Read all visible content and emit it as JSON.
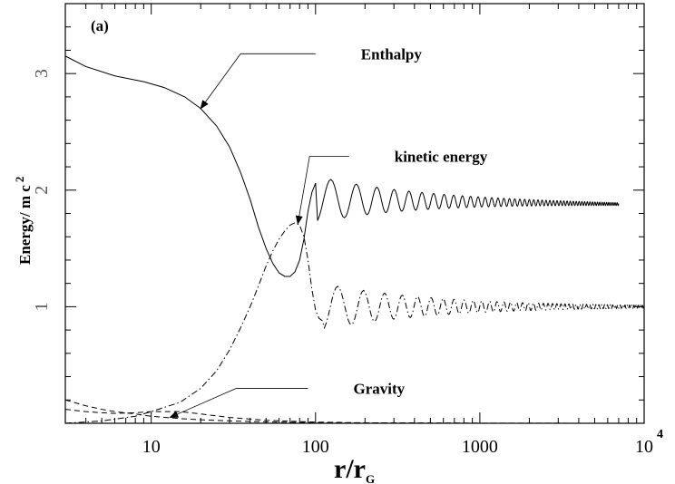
{
  "chart_data": {
    "type": "line",
    "panel_label": "(a)",
    "xscale": "log",
    "xlim": [
      3,
      10000
    ],
    "ylim": [
      0,
      3.6
    ],
    "xticks": [
      {
        "value": 10,
        "label": "10"
      },
      {
        "value": 100,
        "label": "100"
      },
      {
        "value": 1000,
        "label": "1000"
      },
      {
        "value": 10000,
        "label": "10",
        "sup": "4"
      }
    ],
    "yticks": [
      {
        "value": 1,
        "label": "1"
      },
      {
        "value": 2,
        "label": "2"
      },
      {
        "value": 3,
        "label": "3"
      }
    ],
    "xlabel": {
      "main": "r/r",
      "sub": "G"
    },
    "ylabel": {
      "main": "Energy/ m c",
      "sup": "2"
    },
    "grid": false,
    "series": [
      {
        "name": "Enthalpy",
        "style": "solid",
        "x": [
          3,
          4,
          6,
          9,
          12,
          16,
          20,
          25,
          30,
          35,
          40,
          45,
          50,
          55,
          60,
          65,
          70,
          75,
          80,
          85,
          90,
          95,
          100
        ],
        "y": [
          3.15,
          3.06,
          2.98,
          2.93,
          2.88,
          2.8,
          2.7,
          2.55,
          2.37,
          2.15,
          1.92,
          1.68,
          1.5,
          1.37,
          1.29,
          1.26,
          1.26,
          1.3,
          1.4,
          1.58,
          1.82,
          1.98,
          2.06
        ],
        "oscillation": {
          "x_start": 100,
          "x_end": 7000,
          "mean": 1.92,
          "mean_end": 1.88,
          "amp_start": 0.2,
          "amp_end": 0.012,
          "period_start": 0.2,
          "period_end": 0.012
        }
      },
      {
        "name": "kinetic energy",
        "style": "dashdot",
        "x": [
          3,
          5,
          8,
          10,
          15,
          20,
          25,
          30,
          35,
          40,
          45,
          50,
          55,
          60,
          65,
          70,
          75,
          80,
          85,
          90,
          95,
          100,
          105,
          110
        ],
        "y": [
          0.0,
          0.02,
          0.06,
          0.1,
          0.18,
          0.3,
          0.45,
          0.63,
          0.82,
          1.0,
          1.18,
          1.35,
          1.48,
          1.58,
          1.65,
          1.7,
          1.72,
          1.7,
          1.6,
          1.4,
          1.15,
          0.97,
          0.9,
          0.88
        ],
        "oscillation": {
          "x_start": 110,
          "x_end": 10000,
          "mean": 1.0,
          "mean_end": 1.0,
          "amp_start": 0.2,
          "amp_end": 0.012,
          "period_start": 0.2,
          "period_end": 0.012
        }
      },
      {
        "name": "Gravity",
        "style": "dashed",
        "x": [
          3,
          4,
          5,
          6,
          8,
          10,
          15,
          20,
          30,
          50,
          70,
          100,
          200,
          500,
          1000,
          10000
        ],
        "y": [
          0.2,
          0.15,
          0.12,
          0.1,
          0.08,
          0.06,
          0.04,
          0.03,
          0.02,
          0.012,
          0.008,
          0.006,
          0.003,
          0.001,
          0.0005,
          0.0
        ]
      },
      {
        "name": "",
        "style": "dashed",
        "x": [
          3,
          4,
          5,
          6,
          8,
          10,
          15,
          20,
          30,
          50,
          100,
          200,
          1000,
          10000
        ],
        "y": [
          0.12,
          0.1,
          0.09,
          0.085,
          0.09,
          0.1,
          0.1,
          0.08,
          0.05,
          0.025,
          0.01,
          0.004,
          0.001,
          0.0
        ]
      }
    ],
    "annotations": [
      {
        "text": "Enthalpy",
        "line_start": {
          "x": 100,
          "y": 3.17
        },
        "elbow": {
          "x": 35,
          "y": 3.17
        },
        "arrow_tip": {
          "x": 20,
          "y": 2.7
        }
      },
      {
        "text": "kinetic energy",
        "line_start": {
          "x": 160,
          "y": 2.29
        },
        "elbow": {
          "x": 92,
          "y": 2.29
        },
        "arrow_tip": {
          "x": 78,
          "y": 1.71
        }
      },
      {
        "text": "Gravity",
        "line_start": {
          "x": 90,
          "y": 0.3
        },
        "elbow": {
          "x": 33,
          "y": 0.3
        },
        "arrow_tip": {
          "x": 13,
          "y": 0.05
        }
      }
    ]
  }
}
